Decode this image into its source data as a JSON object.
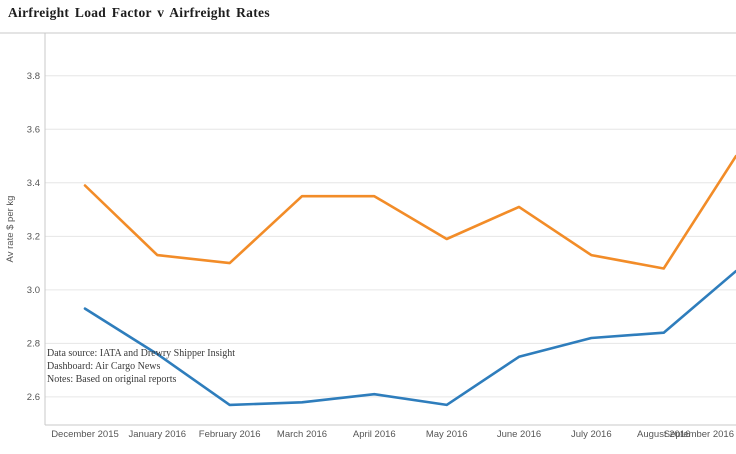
{
  "header": {
    "title": "Airfreight Load Factor v Airfreight Rates"
  },
  "annotation": {
    "lines": [
      "Data source: IATA and Drewry Shipper Insight",
      "Dashboard: Air Cargo News",
      "Notes: Based on original reports"
    ]
  },
  "chart_data": {
    "type": "line",
    "title": "Airfreight Load Factor v Airfreight Rates",
    "categories": [
      "December 2015",
      "January 2016",
      "February 2016",
      "March 2016",
      "April 2016",
      "May 2016",
      "June 2016",
      "July 2016",
      "August 2016",
      "September 2016"
    ],
    "series": [
      {
        "name": "Airfreight Rates",
        "color": "#f28c28",
        "values": [
          3.39,
          3.13,
          3.1,
          3.35,
          3.35,
          3.19,
          3.31,
          3.13,
          3.08,
          3.5
        ]
      },
      {
        "name": "Airfreight Load Factor",
        "color": "#2e7dbc",
        "values": [
          2.93,
          2.76,
          2.57,
          2.58,
          2.61,
          2.57,
          2.75,
          2.82,
          2.84,
          3.07
        ]
      }
    ],
    "xlabel": "",
    "ylabel": "Av rate $ per kg",
    "yticks": [
      2.6,
      2.8,
      3.0,
      3.2,
      3.4,
      3.6,
      3.8
    ],
    "ylim": [
      2.495,
      3.96
    ],
    "grid": true,
    "legend": "none",
    "grid_color": "#e6e6e6",
    "axis_color": "#c9c9c9",
    "tick_label_color": "#565656"
  }
}
